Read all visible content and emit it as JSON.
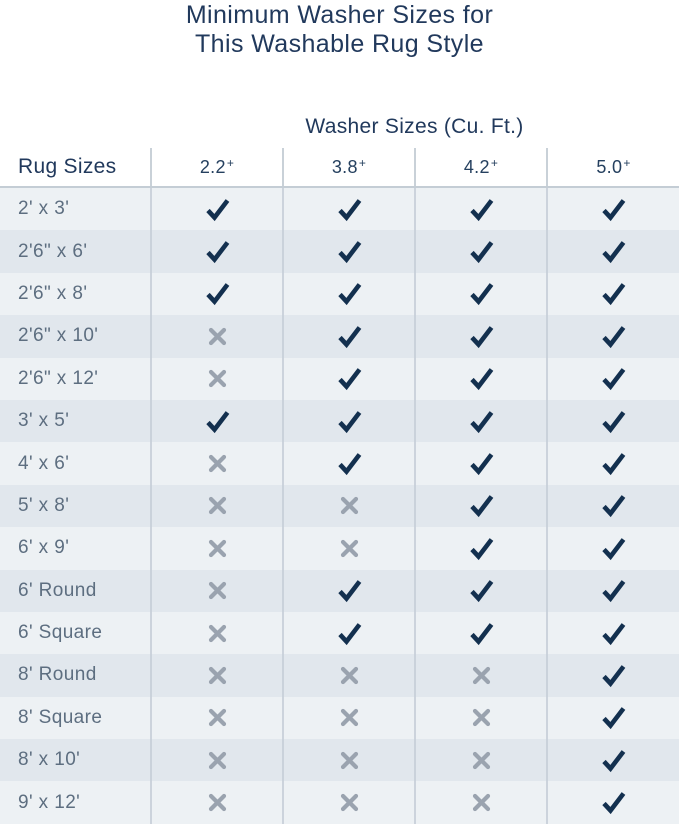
{
  "title": {
    "line1": "Minimum Washer Sizes for",
    "line2": "This Washable Rug Style"
  },
  "chart_data": {
    "type": "table",
    "title": "Minimum Washer Sizes for This Washable Rug Style",
    "group_header": "Washer Sizes (Cu. Ft.)",
    "row_header_label": "Rug Sizes",
    "columns": [
      "2.2+",
      "3.8+",
      "4.2+",
      "5.0+"
    ],
    "rows": [
      {
        "rug_size": "2' x 3'",
        "marks": [
          "check",
          "check",
          "check",
          "check"
        ]
      },
      {
        "rug_size": "2'6\" x 6'",
        "marks": [
          "check",
          "check",
          "check",
          "check"
        ]
      },
      {
        "rug_size": "2'6\" x 8'",
        "marks": [
          "check",
          "check",
          "check",
          "check"
        ]
      },
      {
        "rug_size": "2'6\" x 10'",
        "marks": [
          "x",
          "check",
          "check",
          "check"
        ]
      },
      {
        "rug_size": "2'6\" x 12'",
        "marks": [
          "x",
          "check",
          "check",
          "check"
        ]
      },
      {
        "rug_size": "3' x 5'",
        "marks": [
          "check",
          "check",
          "check",
          "check"
        ]
      },
      {
        "rug_size": "4' x 6'",
        "marks": [
          "x",
          "check",
          "check",
          "check"
        ]
      },
      {
        "rug_size": "5' x 8'",
        "marks": [
          "x",
          "x",
          "check",
          "check"
        ]
      },
      {
        "rug_size": "6' x 9'",
        "marks": [
          "x",
          "x",
          "check",
          "check"
        ]
      },
      {
        "rug_size": "6' Round",
        "marks": [
          "x",
          "check",
          "check",
          "check"
        ]
      },
      {
        "rug_size": "6' Square",
        "marks": [
          "x",
          "check",
          "check",
          "check"
        ]
      },
      {
        "rug_size": "8' Round",
        "marks": [
          "x",
          "x",
          "x",
          "check"
        ]
      },
      {
        "rug_size": "8' Square",
        "marks": [
          "x",
          "x",
          "x",
          "check"
        ]
      },
      {
        "rug_size": "8' x 10'",
        "marks": [
          "x",
          "x",
          "x",
          "check"
        ]
      },
      {
        "rug_size": "9' x 12'",
        "marks": [
          "x",
          "x",
          "x",
          "check"
        ]
      }
    ]
  },
  "icons": {
    "check": "check-icon",
    "x": "x-icon"
  },
  "colors": {
    "title_navy": "#21395c",
    "header_navy": "#25405f",
    "check_navy": "#13304f",
    "x_gray": "#9aa3af",
    "row_light": "#edf1f4",
    "row_dark": "#e1e7ed",
    "divider": "#c9d1d8",
    "header_rule": "#c4cdd5",
    "rug_label_slate": "#5d6e80",
    "background": "#ffffff"
  }
}
